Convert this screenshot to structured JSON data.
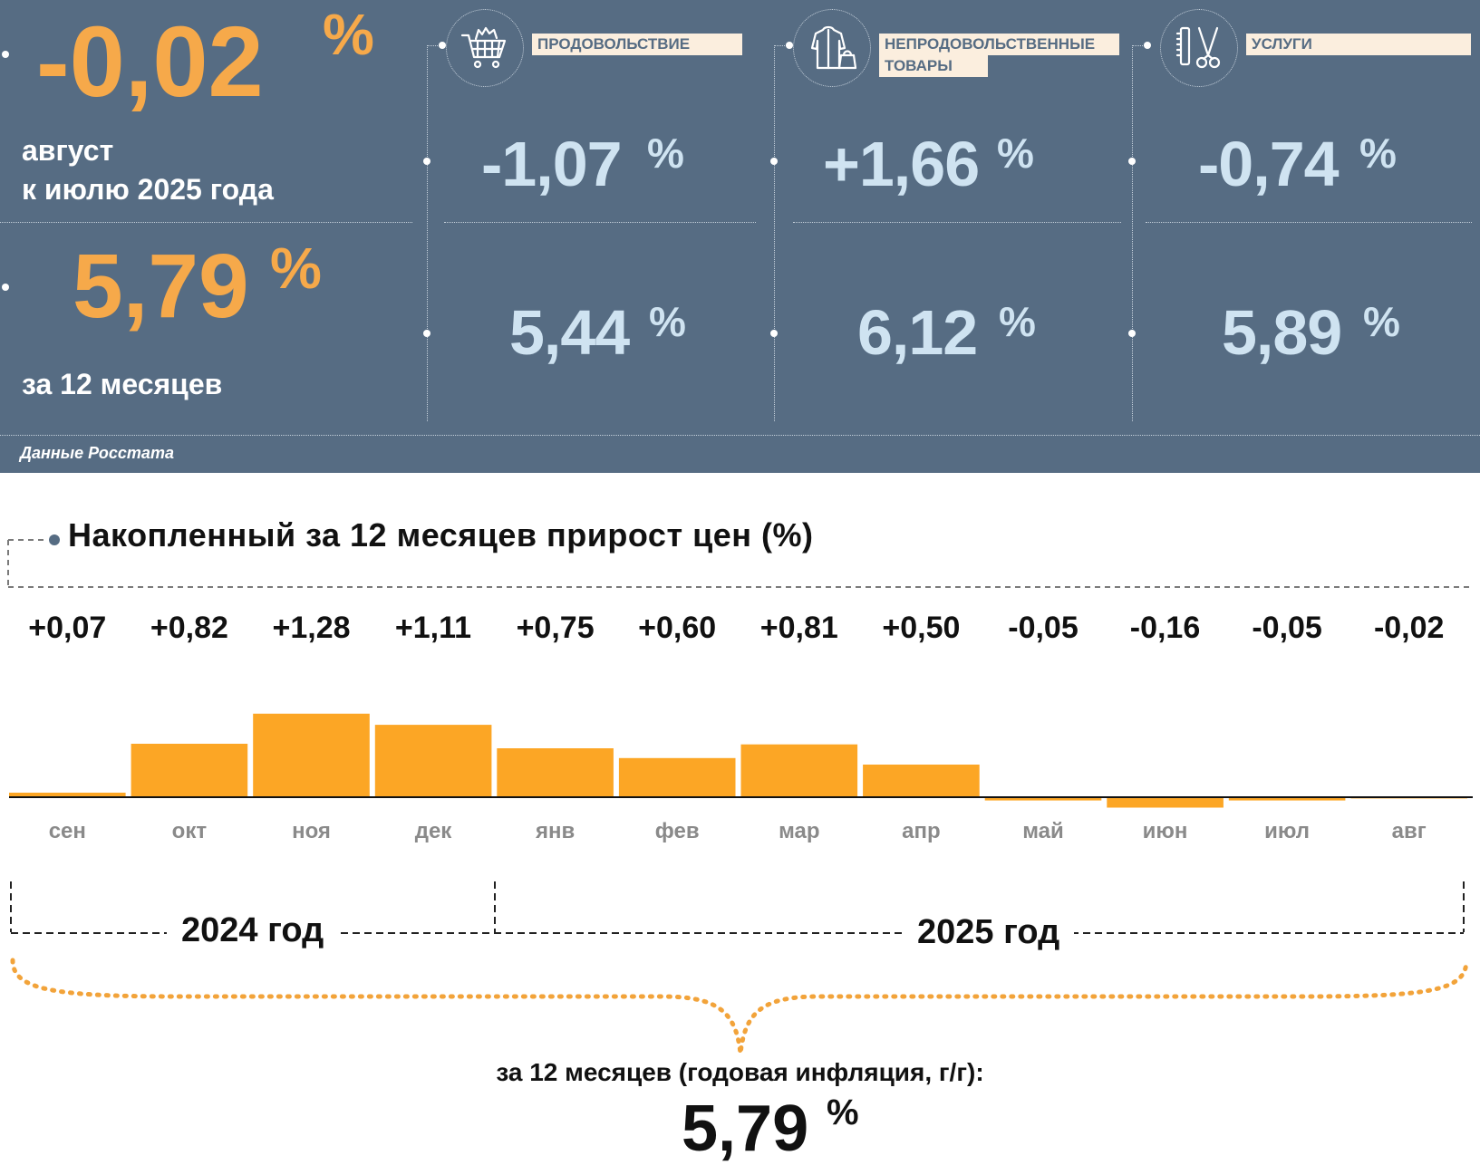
{
  "header": {
    "monthly": {
      "value": "-0,02",
      "unit": "%",
      "caption_line1": "август",
      "caption_line2": "к июлю 2025 года"
    },
    "annual": {
      "value": "5,79",
      "unit": "%",
      "caption": "за 12 месяцев"
    },
    "source": "Данные Росстата",
    "categories": [
      {
        "label_line1": "ПРОДОВОЛЬСТВИЕ",
        "label_line2": "",
        "icon": "shopping-cart-icon",
        "monthly": "-1,07",
        "annual": "5,44",
        "unit": "%"
      },
      {
        "label_line1": "НЕПРОДОВОЛЬСТВЕННЫЕ",
        "label_line2": "ТОВАРЫ",
        "icon": "clothes-bag-icon",
        "monthly": "+1,66",
        "annual": "6,12",
        "unit": "%"
      },
      {
        "label_line1": "УСЛУГИ",
        "label_line2": "",
        "icon": "scissors-comb-icon",
        "monthly": "-0,74",
        "annual": "5,89",
        "unit": "%"
      }
    ]
  },
  "chart_data": {
    "type": "bar",
    "title": "Накопленный за 12 месяцев прирост цен (%)",
    "categories": [
      "сен",
      "окт",
      "ноя",
      "дек",
      "янв",
      "фев",
      "мар",
      "апр",
      "май",
      "июн",
      "июл",
      "авг"
    ],
    "values": [
      0.07,
      0.82,
      1.28,
      1.11,
      0.75,
      0.6,
      0.81,
      0.5,
      -0.05,
      -0.16,
      -0.05,
      -0.02
    ],
    "value_labels": [
      "+0,07",
      "+0,82",
      "+1,28",
      "+1,11",
      "+0,75",
      "+0,60",
      "+0,81",
      "+0,50",
      "-0,05",
      "-0,16",
      "-0,05",
      "-0,02"
    ],
    "year_groups": [
      {
        "label": "2024 год",
        "months": 4
      },
      {
        "label": "2025 год",
        "months": 8
      }
    ],
    "bar_color": "#fca625",
    "grid": false,
    "legend": "none"
  },
  "summary": {
    "caption": "за 12 месяцев (годовая инфляция, г/г):",
    "value": "5,79",
    "unit": "%"
  },
  "colors": {
    "panel": "#566c83",
    "accent_orange": "#f6a94a",
    "value_blue": "#cfe3f1",
    "label_bg": "#fbeede"
  }
}
